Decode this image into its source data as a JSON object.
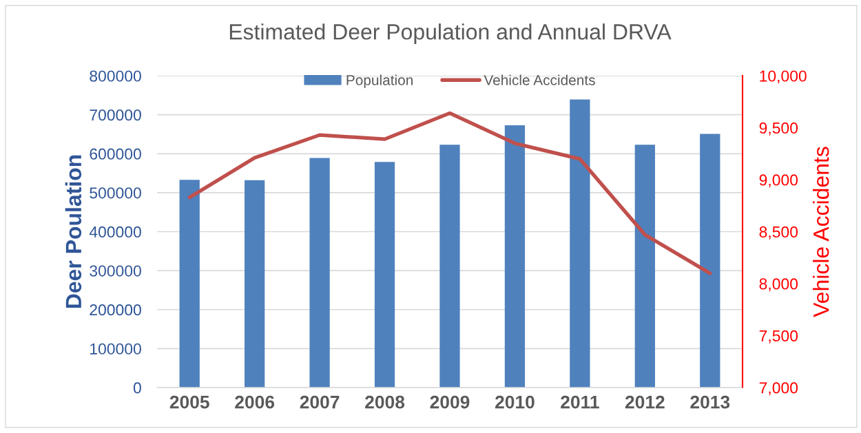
{
  "chart_data": {
    "type": "bar",
    "title": "Estimated Deer Population and Annual DRVA",
    "ylabel": "Deer Poulation",
    "y2label": "Vehicle Accidents",
    "categories": [
      "2005",
      "2006",
      "2007",
      "2008",
      "2009",
      "2010",
      "2011",
      "2012",
      "2013"
    ],
    "series": [
      {
        "name": "Population",
        "type": "bar",
        "color": "#4f81bd",
        "values": [
          533000,
          532000,
          589000,
          579000,
          623000,
          673000,
          739000,
          623000,
          651000
        ]
      },
      {
        "name": "Vehicle Accidents",
        "type": "line",
        "axis": "y2",
        "color": "#c0504d",
        "values": [
          8830,
          9210,
          9430,
          9390,
          9640,
          9350,
          9200,
          8470,
          8100
        ]
      }
    ],
    "ylim": [
      0,
      800000
    ],
    "yticks": [
      0,
      100000,
      200000,
      300000,
      400000,
      500000,
      600000,
      700000,
      800000
    ],
    "y2lim": [
      7000,
      10000
    ],
    "y2ticks": [
      {
        "value": 7000,
        "label": "7,000"
      },
      {
        "value": 7500,
        "label": "7,500"
      },
      {
        "value": 8000,
        "label": "8,000"
      },
      {
        "value": 8500,
        "label": "8,500"
      },
      {
        "value": 9000,
        "label": "9,000"
      },
      {
        "value": 9500,
        "label": "9,500"
      },
      {
        "value": 10000,
        "label": "10,000"
      }
    ],
    "grid": "y",
    "legend": "top"
  }
}
